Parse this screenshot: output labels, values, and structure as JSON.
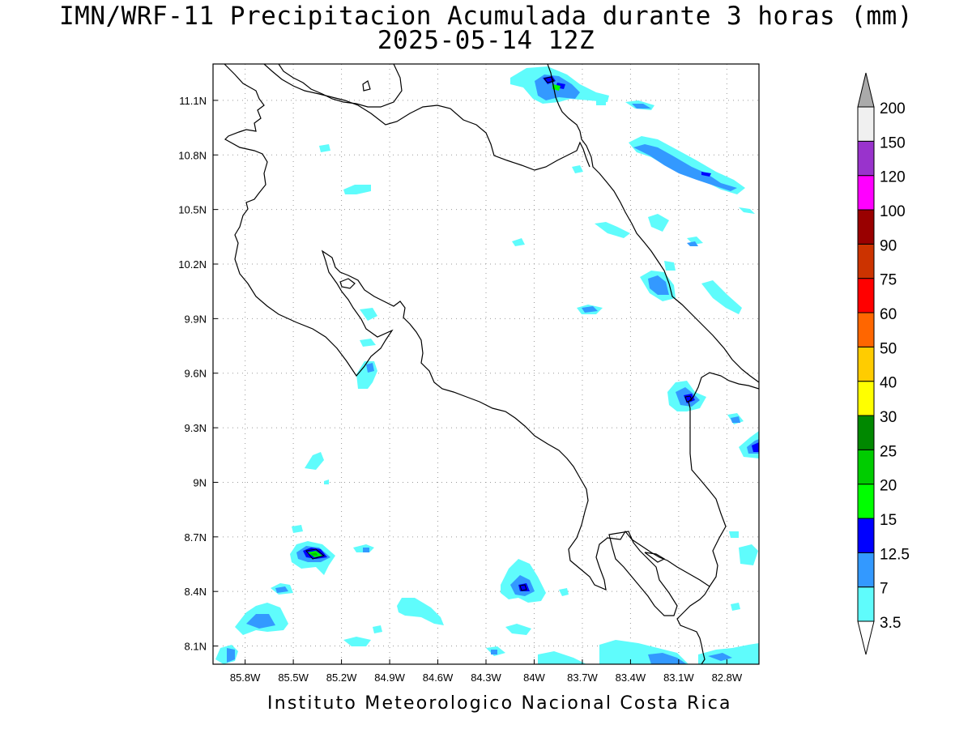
{
  "title_line1": "IMN/WRF-11 Precipitacion Acumulada durante 3 horas (mm)",
  "title_line2": "2025-05-14 12Z",
  "footer": "Instituto Meteorologico Nacional Costa Rica",
  "map": {
    "lon_range": [
      -86.0,
      -82.6
    ],
    "lat_range": [
      8.0,
      11.3
    ],
    "lon_ticks": [
      {
        "v": -85.8,
        "label": "85.8W"
      },
      {
        "v": -85.5,
        "label": "85.5W"
      },
      {
        "v": -85.2,
        "label": "85.2W"
      },
      {
        "v": -84.9,
        "label": "84.9W"
      },
      {
        "v": -84.6,
        "label": "84.6W"
      },
      {
        "v": -84.3,
        "label": "84.3W"
      },
      {
        "v": -84.0,
        "label": "84W"
      },
      {
        "v": -83.7,
        "label": "83.7W"
      },
      {
        "v": -83.4,
        "label": "83.4W"
      },
      {
        "v": -83.1,
        "label": "83.1W"
      },
      {
        "v": -82.8,
        "label": "82.8W"
      }
    ],
    "lat_ticks": [
      {
        "v": 11.1,
        "label": "11.1N"
      },
      {
        "v": 10.8,
        "label": "10.8N"
      },
      {
        "v": 10.5,
        "label": "10.5N"
      },
      {
        "v": 10.2,
        "label": "10.2N"
      },
      {
        "v": 9.9,
        "label": "9.9N"
      },
      {
        "v": 9.6,
        "label": "9.6N"
      },
      {
        "v": 9.3,
        "label": "9.3N"
      },
      {
        "v": 9.0,
        "label": "9N"
      },
      {
        "v": 8.7,
        "label": "8.7N"
      },
      {
        "v": 8.4,
        "label": "8.4N"
      },
      {
        "v": 8.1,
        "label": "8.1N"
      }
    ],
    "grid": "dotted",
    "colors": {
      "coast": "#000000",
      "grid": "#999999"
    }
  },
  "legend": {
    "placement": "right",
    "levels": [
      {
        "label": "3.5",
        "color": "#5ffcfc"
      },
      {
        "label": "7",
        "color": "#3399ff"
      },
      {
        "label": "12.5",
        "color": "#0000ff"
      },
      {
        "label": "15",
        "color": "#00ff00"
      },
      {
        "label": "20",
        "color": "#00cc00"
      },
      {
        "label": "25",
        "color": "#008800"
      },
      {
        "label": "30",
        "color": "#ffff00"
      },
      {
        "label": "40",
        "color": "#ffcc00"
      },
      {
        "label": "50",
        "color": "#ff6600"
      },
      {
        "label": "60",
        "color": "#ff0000"
      },
      {
        "label": "75",
        "color": "#cc3300"
      },
      {
        "label": "90",
        "color": "#990000"
      },
      {
        "label": "100",
        "color": "#ff00ff"
      },
      {
        "label": "120",
        "color": "#9933cc"
      },
      {
        "label": "150",
        "color": "#f0f0f0"
      },
      {
        "label": "200",
        "color": "#aaaaaa"
      }
    ]
  },
  "precip_cells": [
    {
      "lon": -83.85,
      "lat": 11.17,
      "level": 1
    },
    {
      "lon": -83.1,
      "lat": 10.72,
      "level": 1
    },
    {
      "lon": -83.09,
      "lat": 10.1,
      "level": 1
    },
    {
      "lon": -82.97,
      "lat": 9.44,
      "level": 2
    },
    {
      "lon": -82.62,
      "lat": 9.18,
      "level": 2
    },
    {
      "lon": -85.34,
      "lat": 8.61,
      "level": 3
    },
    {
      "lon": -83.98,
      "lat": 8.42,
      "level": 2
    },
    {
      "lon": -85.74,
      "lat": 8.22,
      "level": 1
    }
  ]
}
